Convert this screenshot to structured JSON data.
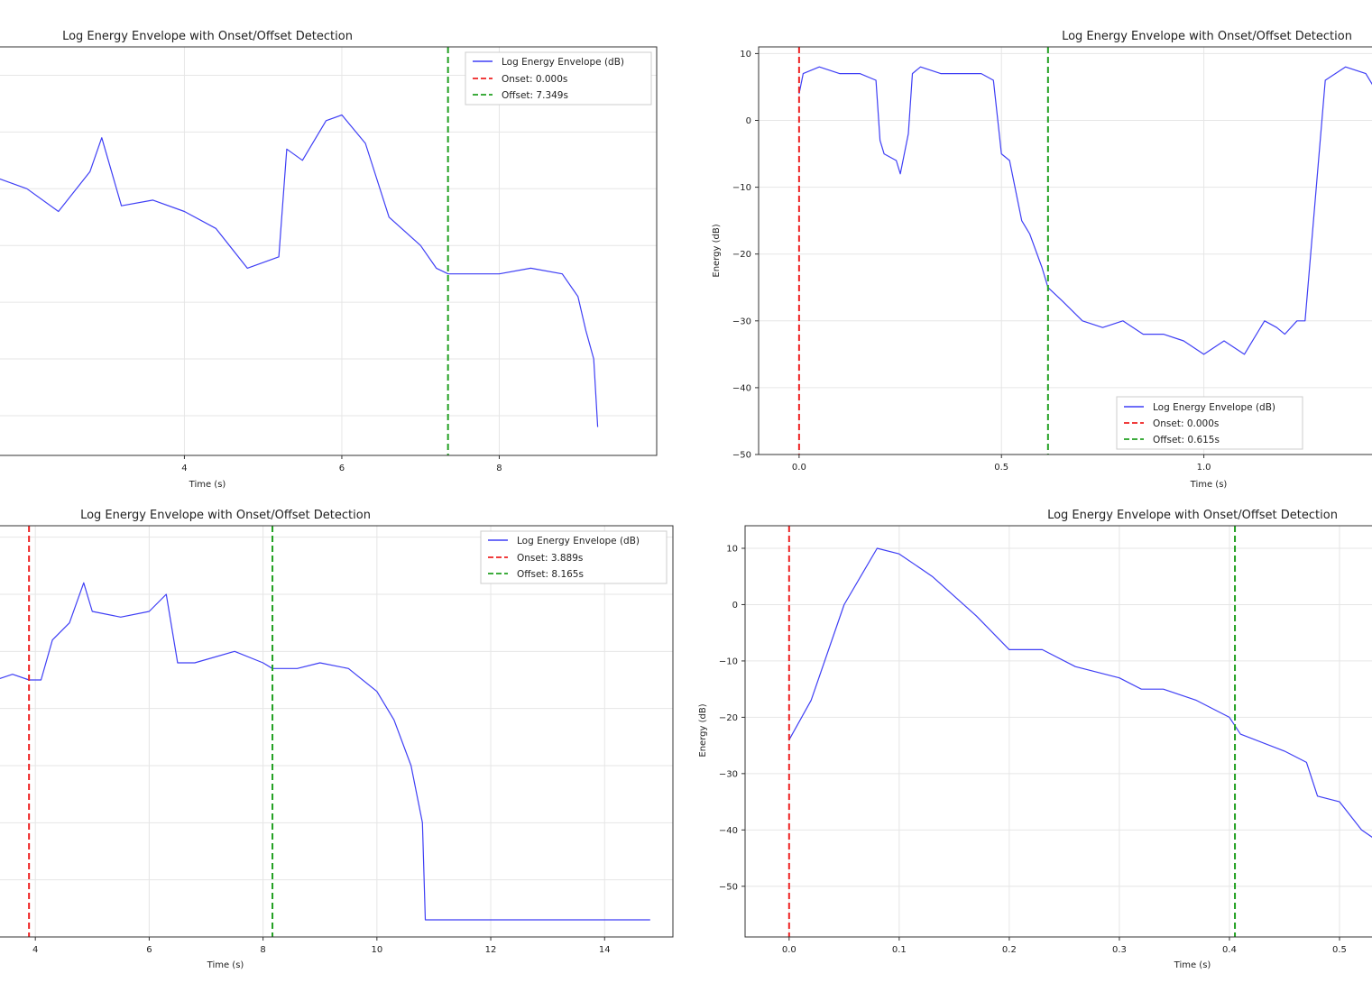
{
  "colors": {
    "envelope": "#3f3ff5",
    "onset": "#ee2222",
    "offset": "#22a022",
    "grid": "#e6e6e6"
  },
  "chart_data": [
    {
      "type": "line",
      "title": "Log Energy Envelope with Onset/Offset Detection",
      "xlabel": "Time (s)",
      "ylabel": "",
      "xlim": [
        1.6,
        10.0
      ],
      "ylim": [
        -57,
        15
      ],
      "x_ticks": [
        4,
        6,
        8
      ],
      "y_ticks": [],
      "grid": true,
      "legend_position": "top-right",
      "series": [
        {
          "name": "Log Energy Envelope (dB)",
          "x": [
            1.6,
            2.0,
            2.4,
            2.8,
            2.95,
            3.2,
            3.6,
            4.0,
            4.4,
            4.8,
            5.2,
            5.3,
            5.5,
            5.8,
            6.0,
            6.3,
            6.6,
            7.0,
            7.2,
            7.35,
            7.6,
            8.0,
            8.4,
            8.8,
            9.0,
            9.1,
            9.2,
            9.25
          ],
          "y": [
            -8,
            -10,
            -14,
            -7,
            -1,
            -13,
            -12,
            -14,
            -17,
            -24,
            -22,
            -3,
            -5,
            2,
            3,
            -2,
            -15,
            -20,
            -24,
            -25,
            -25,
            -25,
            -24,
            -25,
            -29,
            -35,
            -40,
            -52
          ]
        },
        {
          "name": "Onset: 0.000s"
        },
        {
          "name": "Offset: 7.349s"
        }
      ],
      "onset": null,
      "offset": 7.349
    },
    {
      "type": "line",
      "title": "Log Energy Envelope with Onset/Offset Detection",
      "xlabel": "Time (s)",
      "ylabel": "Energy (dB)",
      "xlim": [
        -0.1,
        1.46
      ],
      "ylim": [
        -50,
        11
      ],
      "x_ticks": [
        0.0,
        0.5,
        1.0
      ],
      "y_ticks": [
        10,
        0,
        -10,
        -20,
        -30,
        -40,
        -50
      ],
      "grid": true,
      "legend_position": "lower-right",
      "series": [
        {
          "name": "Log Energy Envelope (dB)",
          "x": [
            0.0,
            0.01,
            0.05,
            0.1,
            0.15,
            0.19,
            0.2,
            0.21,
            0.24,
            0.25,
            0.27,
            0.28,
            0.3,
            0.35,
            0.4,
            0.45,
            0.48,
            0.5,
            0.52,
            0.55,
            0.57,
            0.6,
            0.615,
            0.65,
            0.7,
            0.75,
            0.8,
            0.85,
            0.9,
            0.95,
            1.0,
            1.05,
            1.1,
            1.15,
            1.18,
            1.2,
            1.23,
            1.25,
            1.3,
            1.35,
            1.4,
            1.45
          ],
          "y": [
            4,
            7,
            8,
            7,
            7,
            6,
            -3,
            -5,
            -6,
            -8,
            -2,
            7,
            8,
            7,
            7,
            7,
            6,
            -5,
            -6,
            -15,
            -17,
            -22,
            -25,
            -27,
            -30,
            -31,
            -30,
            -32,
            -32,
            -33,
            -35,
            -33,
            -35,
            -30,
            -31,
            -32,
            -30,
            -30,
            6,
            8,
            7,
            2
          ]
        },
        {
          "name": "Onset: 0.000s"
        },
        {
          "name": "Offset: 0.615s"
        }
      ],
      "onset": 0.0,
      "offset": 0.615
    },
    {
      "type": "line",
      "title": "Log Energy Envelope with Onset/Offset Detection",
      "xlabel": "Time (s)",
      "ylabel": "",
      "xlim": [
        3.3,
        15.2
      ],
      "ylim": [
        -60,
        12
      ],
      "x_ticks": [
        4,
        6,
        8,
        10,
        12,
        14
      ],
      "y_ticks": [],
      "grid": true,
      "legend_position": "top-right",
      "series": [
        {
          "name": "Log Energy Envelope (dB)",
          "x": [
            3.3,
            3.6,
            3.889,
            4.1,
            4.3,
            4.6,
            4.85,
            5.0,
            5.5,
            6.0,
            6.3,
            6.5,
            6.8,
            7.5,
            8.0,
            8.165,
            8.6,
            9.0,
            9.5,
            10.0,
            10.3,
            10.6,
            10.8,
            10.85,
            10.9,
            11.5,
            12.5,
            13.5,
            14.5,
            14.8
          ],
          "y": [
            -15,
            -14,
            -15,
            -15,
            -8,
            -5,
            2,
            -3,
            -4,
            -3,
            0,
            -12,
            -12,
            -10,
            -12,
            -13,
            -13,
            -12,
            -13,
            -17,
            -22,
            -30,
            -40,
            -57,
            -57,
            -57,
            -57,
            -57,
            -57,
            -57
          ]
        },
        {
          "name": "Onset: 3.889s"
        },
        {
          "name": "Offset: 8.165s"
        }
      ],
      "onset": 3.889,
      "offset": 8.165
    },
    {
      "type": "line",
      "title": "Log Energy Envelope with Onset/Offset Detection",
      "xlabel": "Time (s)",
      "ylabel": "Energy (dB)",
      "xlim": [
        -0.04,
        0.55
      ],
      "ylim": [
        -59,
        14
      ],
      "x_ticks": [
        0.0,
        0.1,
        0.2,
        0.3,
        0.4,
        0.5
      ],
      "y_ticks": [
        10,
        0,
        -10,
        -20,
        -30,
        -40,
        -50
      ],
      "grid": true,
      "legend_position": "none",
      "series": [
        {
          "name": "Log Energy Envelope (dB)",
          "x": [
            0.0,
            0.02,
            0.05,
            0.08,
            0.1,
            0.13,
            0.17,
            0.2,
            0.23,
            0.26,
            0.28,
            0.3,
            0.32,
            0.34,
            0.37,
            0.4,
            0.41,
            0.45,
            0.47,
            0.48,
            0.5,
            0.52,
            0.55
          ],
          "y": [
            -24,
            -17,
            0,
            10,
            9,
            5,
            -2,
            -8,
            -8,
            -11,
            -12,
            -13,
            -15,
            -15,
            -17,
            -20,
            -23,
            -26,
            -28,
            -34,
            -35,
            -40,
            -44
          ]
        }
      ],
      "onset": 0.0,
      "offset": 0.405
    }
  ]
}
